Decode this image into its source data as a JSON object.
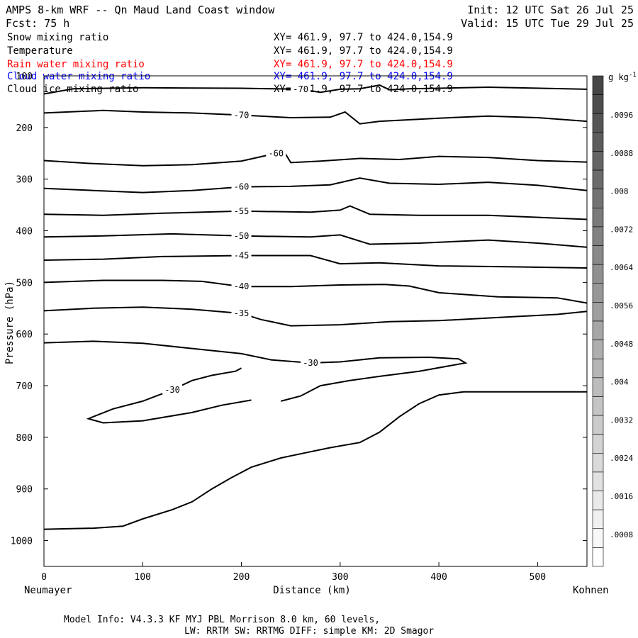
{
  "header": {
    "title": "AMPS 8-km WRF -- Qn Maud Land Coast window",
    "init": "Init: 12 UTC Sat 26 Jul 25",
    "fcst": "Fcst:   75 h",
    "valid": "Valid: 15 UTC Tue 29 Jul 25"
  },
  "fields": [
    {
      "name": "Snow mixing ratio",
      "xy": "XY= 461.9, 97.7 to 424.0,154.9",
      "color": "#000000"
    },
    {
      "name": "Temperature",
      "xy": "XY= 461.9, 97.7 to 424.0,154.9",
      "color": "#000000"
    },
    {
      "name": "Rain water mixing ratio",
      "xy": "XY= 461.9, 97.7 to 424.0,154.9",
      "color": "#ff0000"
    },
    {
      "name": "Cloud water mixing ratio",
      "xy": "XY= 461.9, 97.7 to 424.0,154.9",
      "color": "#0000ff"
    },
    {
      "name": "Cloud ice mixing ratio",
      "xy": "XY= 461.9, 97.7 to 424.0,154.9",
      "color": "#000000"
    }
  ],
  "footer": {
    "line1": "Model Info: V4.3.3   KF      MYJ PBL  Morrison              8.0 km,  60 levels,",
    "line2": "LW: RRTM SW: RRTMG   DIFF: simple KM: 2D Smagor"
  },
  "chart_data": {
    "type": "line",
    "xlabel": "Distance (km)",
    "ylabel": "Pressure (hPa)",
    "xlim": [
      0,
      550
    ],
    "ylim": [
      1050,
      100
    ],
    "y_scale": "linear-reversed",
    "x_ticks": [
      0,
      100,
      200,
      300,
      400,
      500
    ],
    "y_ticks": [
      100,
      200,
      300,
      400,
      500,
      600,
      700,
      800,
      900,
      1000
    ],
    "x_left_label": "Neumayer",
    "x_right_label": "Kohnen",
    "colorbar": {
      "unit": "g kg",
      "unit_exp": "-1",
      "labels": [
        ".0096",
        ".0088",
        ".008",
        ".0072",
        ".0064",
        ".0056",
        ".0048",
        ".004",
        ".0032",
        ".0024",
        ".0016",
        ".0008"
      ]
    },
    "isotherms": [
      {
        "value": -70,
        "points": [
          [
            0,
            135
          ],
          [
            30,
            125
          ],
          [
            100,
            123
          ],
          [
            200,
            124
          ],
          [
            260,
            126
          ],
          [
            280,
            132
          ],
          [
            300,
            126
          ],
          [
            320,
            125
          ],
          [
            340,
            118
          ],
          [
            350,
            127
          ],
          [
            370,
            125
          ],
          [
            400,
            124
          ],
          [
            450,
            122
          ],
          [
            550,
            126
          ]
        ]
      },
      {
        "value": -70,
        "points": [
          [
            0,
            172
          ],
          [
            60,
            167
          ],
          [
            100,
            170
          ],
          [
            150,
            172
          ],
          [
            200,
            176
          ],
          [
            250,
            181
          ],
          [
            290,
            180
          ],
          [
            305,
            170
          ],
          [
            320,
            193
          ],
          [
            340,
            188
          ],
          [
            400,
            182
          ],
          [
            450,
            178
          ],
          [
            500,
            181
          ],
          [
            550,
            188
          ]
        ]
      },
      {
        "value": -60,
        "points": [
          [
            0,
            264
          ],
          [
            50,
            270
          ],
          [
            100,
            274
          ],
          [
            150,
            272
          ],
          [
            200,
            265
          ],
          [
            235,
            250
          ],
          [
            243,
            246
          ],
          [
            250,
            268
          ],
          [
            280,
            265
          ],
          [
            320,
            260
          ],
          [
            360,
            262
          ],
          [
            400,
            256
          ],
          [
            450,
            258
          ],
          [
            500,
            264
          ],
          [
            550,
            267
          ]
        ]
      },
      {
        "value": -60,
        "points": [
          [
            0,
            318
          ],
          [
            50,
            322
          ],
          [
            100,
            326
          ],
          [
            150,
            322
          ],
          [
            200,
            315
          ],
          [
            250,
            314
          ],
          [
            290,
            311
          ],
          [
            320,
            298
          ],
          [
            350,
            308
          ],
          [
            400,
            310
          ],
          [
            450,
            306
          ],
          [
            500,
            312
          ],
          [
            550,
            322
          ]
        ]
      },
      {
        "value": -55,
        "points": [
          [
            0,
            368
          ],
          [
            60,
            370
          ],
          [
            120,
            366
          ],
          [
            200,
            362
          ],
          [
            270,
            364
          ],
          [
            300,
            360
          ],
          [
            310,
            352
          ],
          [
            330,
            368
          ],
          [
            380,
            370
          ],
          [
            450,
            370
          ],
          [
            550,
            378
          ]
        ]
      },
      {
        "value": -50,
        "points": [
          [
            0,
            412
          ],
          [
            60,
            410
          ],
          [
            130,
            406
          ],
          [
            200,
            410
          ],
          [
            270,
            412
          ],
          [
            300,
            408
          ],
          [
            330,
            426
          ],
          [
            380,
            424
          ],
          [
            450,
            418
          ],
          [
            500,
            424
          ],
          [
            550,
            432
          ]
        ]
      },
      {
        "value": -45,
        "points": [
          [
            0,
            457
          ],
          [
            60,
            455
          ],
          [
            120,
            450
          ],
          [
            200,
            448
          ],
          [
            270,
            448
          ],
          [
            300,
            464
          ],
          [
            340,
            462
          ],
          [
            400,
            468
          ],
          [
            480,
            470
          ],
          [
            550,
            472
          ]
        ]
      },
      {
        "value": -40,
        "points": [
          [
            0,
            500
          ],
          [
            60,
            496
          ],
          [
            120,
            496
          ],
          [
            160,
            498
          ],
          [
            200,
            508
          ],
          [
            250,
            508
          ],
          [
            300,
            505
          ],
          [
            345,
            504
          ],
          [
            370,
            507
          ],
          [
            400,
            520
          ],
          [
            460,
            528
          ],
          [
            520,
            530
          ],
          [
            550,
            540
          ]
        ]
      },
      {
        "value": -35,
        "points": [
          [
            0,
            555
          ],
          [
            50,
            550
          ],
          [
            100,
            548
          ],
          [
            150,
            552
          ],
          [
            200,
            560
          ],
          [
            220,
            572
          ],
          [
            250,
            584
          ],
          [
            300,
            582
          ],
          [
            350,
            576
          ],
          [
            400,
            574
          ],
          [
            480,
            566
          ],
          [
            520,
            562
          ],
          [
            550,
            556
          ]
        ]
      },
      {
        "value": -30,
        "points": [
          [
            0,
            617
          ],
          [
            50,
            614
          ],
          [
            100,
            618
          ],
          [
            150,
            628
          ],
          [
            200,
            638
          ],
          [
            230,
            650
          ],
          [
            270,
            656
          ],
          [
            300,
            654
          ],
          [
            340,
            646
          ],
          [
            390,
            645
          ],
          [
            420,
            648
          ],
          [
            427,
            656
          ],
          [
            380,
            672
          ],
          [
            340,
            682
          ],
          [
            310,
            690
          ],
          [
            280,
            700
          ],
          [
            260,
            720
          ],
          [
            240,
            730
          ]
        ]
      },
      {
        "value": -30,
        "points": [
          [
            200,
            666
          ],
          [
            194,
            672
          ],
          [
            170,
            680
          ],
          [
            150,
            690
          ],
          [
            130,
            708
          ],
          [
            100,
            730
          ],
          [
            70,
            745
          ],
          [
            50,
            760
          ],
          [
            45,
            764
          ],
          [
            60,
            772
          ],
          [
            100,
            768
          ],
          [
            150,
            752
          ],
          [
            180,
            738
          ],
          [
            210,
            728
          ]
        ]
      }
    ],
    "terrain": [
      [
        0,
        978
      ],
      [
        50,
        976
      ],
      [
        80,
        972
      ],
      [
        100,
        958
      ],
      [
        130,
        940
      ],
      [
        150,
        925
      ],
      [
        170,
        900
      ],
      [
        190,
        878
      ],
      [
        210,
        858
      ],
      [
        240,
        840
      ],
      [
        265,
        830
      ],
      [
        290,
        820
      ],
      [
        320,
        810
      ],
      [
        340,
        790
      ],
      [
        360,
        760
      ],
      [
        380,
        735
      ],
      [
        400,
        718
      ],
      [
        425,
        712
      ],
      [
        550,
        712
      ]
    ]
  }
}
